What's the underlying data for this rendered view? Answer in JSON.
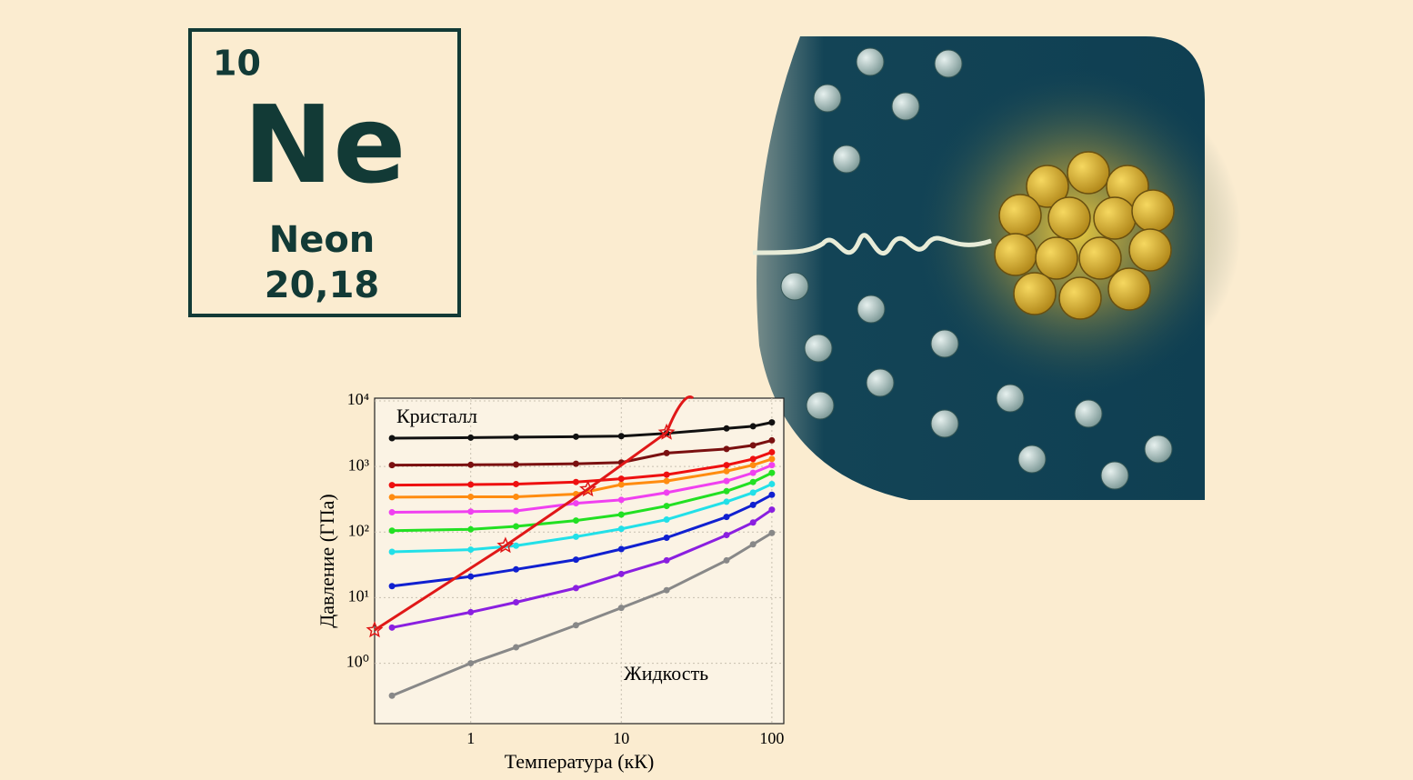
{
  "element": {
    "number": "10",
    "symbol": "Ne",
    "name": "Neon",
    "mass": "20,18"
  },
  "chart_data": {
    "type": "line",
    "x_label": "Температура (кК)",
    "y_label": "Давление (ГПа)",
    "annotations": [
      "Кристалл",
      "Жидкость"
    ],
    "xscale": "log",
    "yscale": "log",
    "grid": true,
    "xlim": [
      0.23,
      120
    ],
    "ylim": [
      0.12,
      11000
    ],
    "xticks": [
      1,
      10,
      100
    ],
    "yticks": [
      {
        "value": 1,
        "label": "10⁰"
      },
      {
        "value": 10,
        "label": "10¹"
      },
      {
        "value": 100,
        "label": "10²"
      },
      {
        "value": 1000,
        "label": "10³"
      },
      {
        "value": 10000,
        "label": "10⁴"
      }
    ],
    "x": [
      0.3,
      1,
      2,
      5,
      10,
      20,
      50,
      75,
      100
    ],
    "series": [
      {
        "color": "#888888",
        "values": [
          0.32,
          1.0,
          1.75,
          3.8,
          7,
          13,
          37,
          65,
          97
        ]
      },
      {
        "color": "#8a1fe0",
        "values": [
          3.5,
          6,
          8.5,
          14,
          23,
          37,
          90,
          140,
          220
        ]
      },
      {
        "color": "#1020d0",
        "values": [
          15,
          21,
          27,
          38,
          55,
          82,
          170,
          260,
          370
        ]
      },
      {
        "color": "#22e0e8",
        "values": [
          50,
          54,
          62,
          85,
          112,
          155,
          290,
          400,
          540
        ]
      },
      {
        "color": "#22e022",
        "values": [
          105,
          110,
          122,
          150,
          185,
          250,
          420,
          580,
          800
        ]
      },
      {
        "color": "#f040f0",
        "values": [
          200,
          205,
          210,
          275,
          310,
          400,
          600,
          800,
          1050
        ]
      },
      {
        "color": "#ff8c10",
        "values": [
          340,
          345,
          345,
          380,
          530,
          600,
          850,
          1050,
          1300
        ]
      },
      {
        "color": "#ee1010",
        "values": [
          520,
          530,
          540,
          580,
          650,
          750,
          1050,
          1300,
          1650
        ]
      },
      {
        "color": "#7a1010",
        "values": [
          1050,
          1060,
          1070,
          1100,
          1150,
          1600,
          1850,
          2100,
          2500
        ]
      },
      {
        "color": "#111111",
        "values": [
          2700,
          2750,
          2800,
          2850,
          2900,
          3200,
          3800,
          4100,
          4700
        ]
      },
      {
        "color": "#e01818",
        "marker": "star",
        "x": [
          0.23,
          1.7,
          6,
          20
        ],
        "values": [
          3.2,
          62,
          450,
          3300
        ]
      }
    ]
  }
}
